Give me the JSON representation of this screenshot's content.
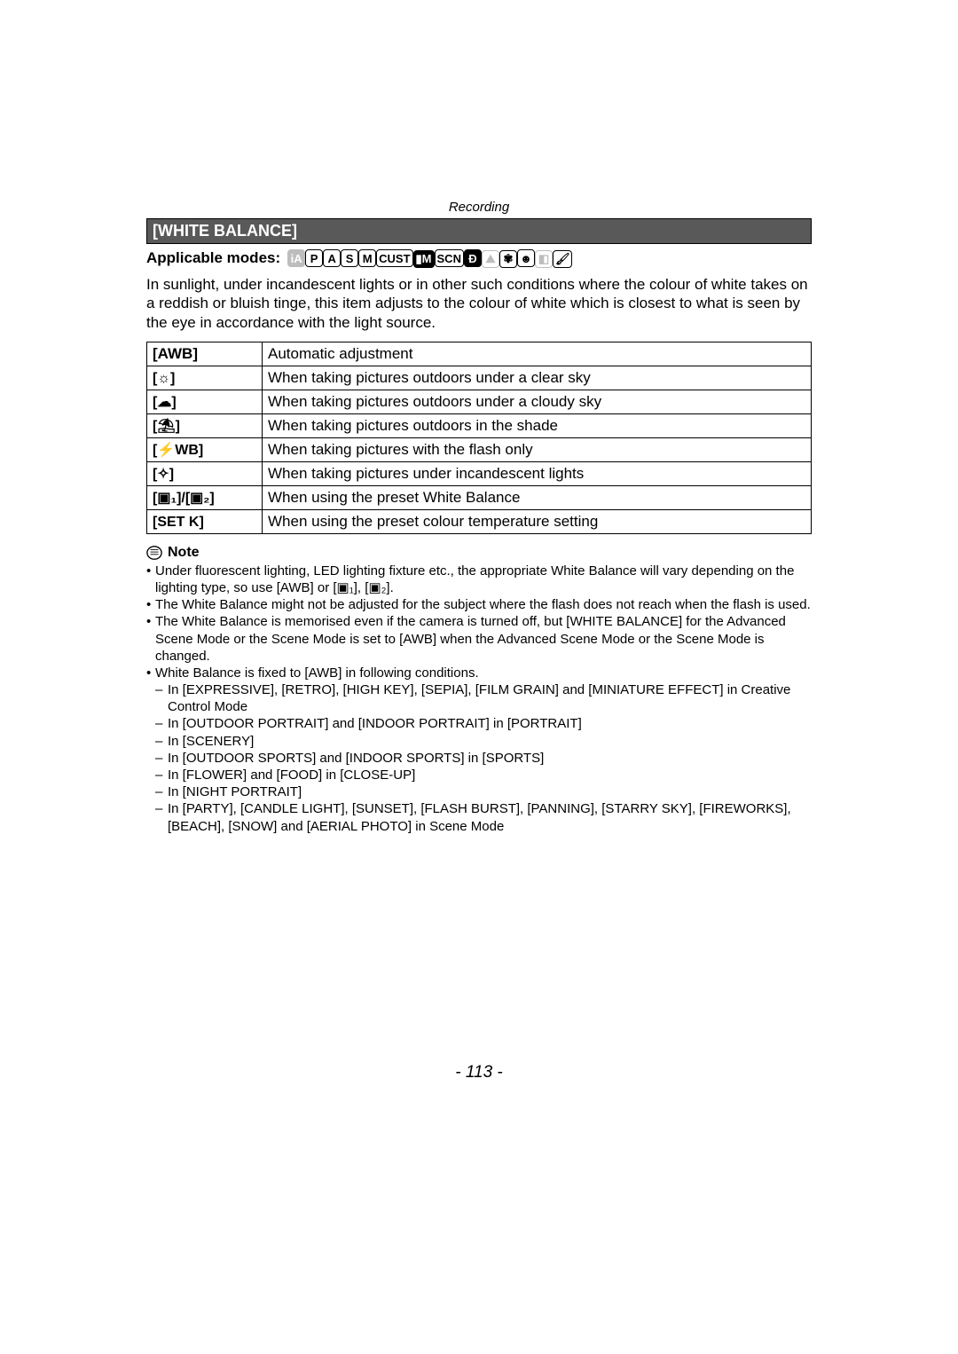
{
  "header": {
    "category": "Recording"
  },
  "section": {
    "title": "[WHITE BALANCE]"
  },
  "modes": {
    "label": "Applicable modes:",
    "items": [
      {
        "text": "iA",
        "ghost": true,
        "filled": true
      },
      {
        "text": "P",
        "ghost": false
      },
      {
        "text": "A",
        "ghost": false
      },
      {
        "text": "S",
        "ghost": false
      },
      {
        "text": "M",
        "ghost": false
      },
      {
        "text": "CUST",
        "ghost": false
      },
      {
        "text": "▮M",
        "ghost": false,
        "filled": true
      },
      {
        "text": "SCN",
        "ghost": false
      },
      {
        "text": "Ð",
        "ghost": false,
        "filled": true
      },
      {
        "text": "⛰",
        "ghost": true
      },
      {
        "text": "✾",
        "ghost": false
      },
      {
        "text": "☻",
        "ghost": false
      },
      {
        "text": "◧",
        "ghost": true
      },
      {
        "text": "🖌",
        "ghost": false
      }
    ]
  },
  "intro": "In sunlight, under incandescent lights or in other such conditions where the colour of white takes on a reddish or bluish tinge, this item adjusts to the colour of white which is closest to what is seen by the eye in accordance with the light source.",
  "table": {
    "rows": [
      {
        "left_text": "[AWB]",
        "left_is_text": true,
        "desc": "Automatic adjustment"
      },
      {
        "left_text": "[☼]",
        "left_is_text": false,
        "desc": "When taking pictures outdoors under a clear sky"
      },
      {
        "left_text": "[☁]",
        "left_is_text": false,
        "desc": "When taking pictures outdoors under a cloudy sky"
      },
      {
        "left_text": "[⛱]",
        "left_is_text": false,
        "desc": "When taking pictures outdoors in the shade"
      },
      {
        "left_text": "[⚡WB]",
        "left_is_text": false,
        "desc": "When taking pictures with the flash only"
      },
      {
        "left_text": "[✧]",
        "left_is_text": false,
        "desc": "When taking pictures under incandescent lights"
      },
      {
        "left_text": "[▣₁]/[▣₂]",
        "left_is_text": false,
        "desc": "When using the preset White Balance"
      },
      {
        "left_text": "[SET K]",
        "left_is_text": false,
        "desc": "When using the preset colour temperature setting"
      }
    ]
  },
  "note": {
    "label": "Note",
    "items": [
      "Under fluorescent lighting, LED lighting fixture etc., the appropriate White Balance will vary depending on the lighting type, so use [AWB] or [▣₁], [▣₂].",
      "The White Balance might not be adjusted for the subject where the flash does not reach when the flash is used.",
      "The White Balance is memorised even if the camera is turned off, but [WHITE BALANCE] for the Advanced Scene Mode or the Scene Mode is set to [AWB] when the Advanced Scene Mode or the Scene Mode is changed.",
      "White Balance is fixed to [AWB] in following conditions."
    ],
    "sub": [
      "In [EXPRESSIVE], [RETRO], [HIGH KEY], [SEPIA], [FILM GRAIN] and [MINIATURE EFFECT] in Creative Control Mode",
      "In [OUTDOOR PORTRAIT] and [INDOOR PORTRAIT] in [PORTRAIT]",
      "In [SCENERY]",
      "In [OUTDOOR SPORTS] and [INDOOR SPORTS] in [SPORTS]",
      "In [FLOWER] and [FOOD] in [CLOSE-UP]",
      "In [NIGHT PORTRAIT]",
      "In [PARTY], [CANDLE LIGHT], [SUNSET], [FLASH BURST], [PANNING], [STARRY SKY], [FIREWORKS], [BEACH], [SNOW] and [AERIAL PHOTO] in Scene Mode"
    ]
  },
  "page_number": "- 113 -"
}
